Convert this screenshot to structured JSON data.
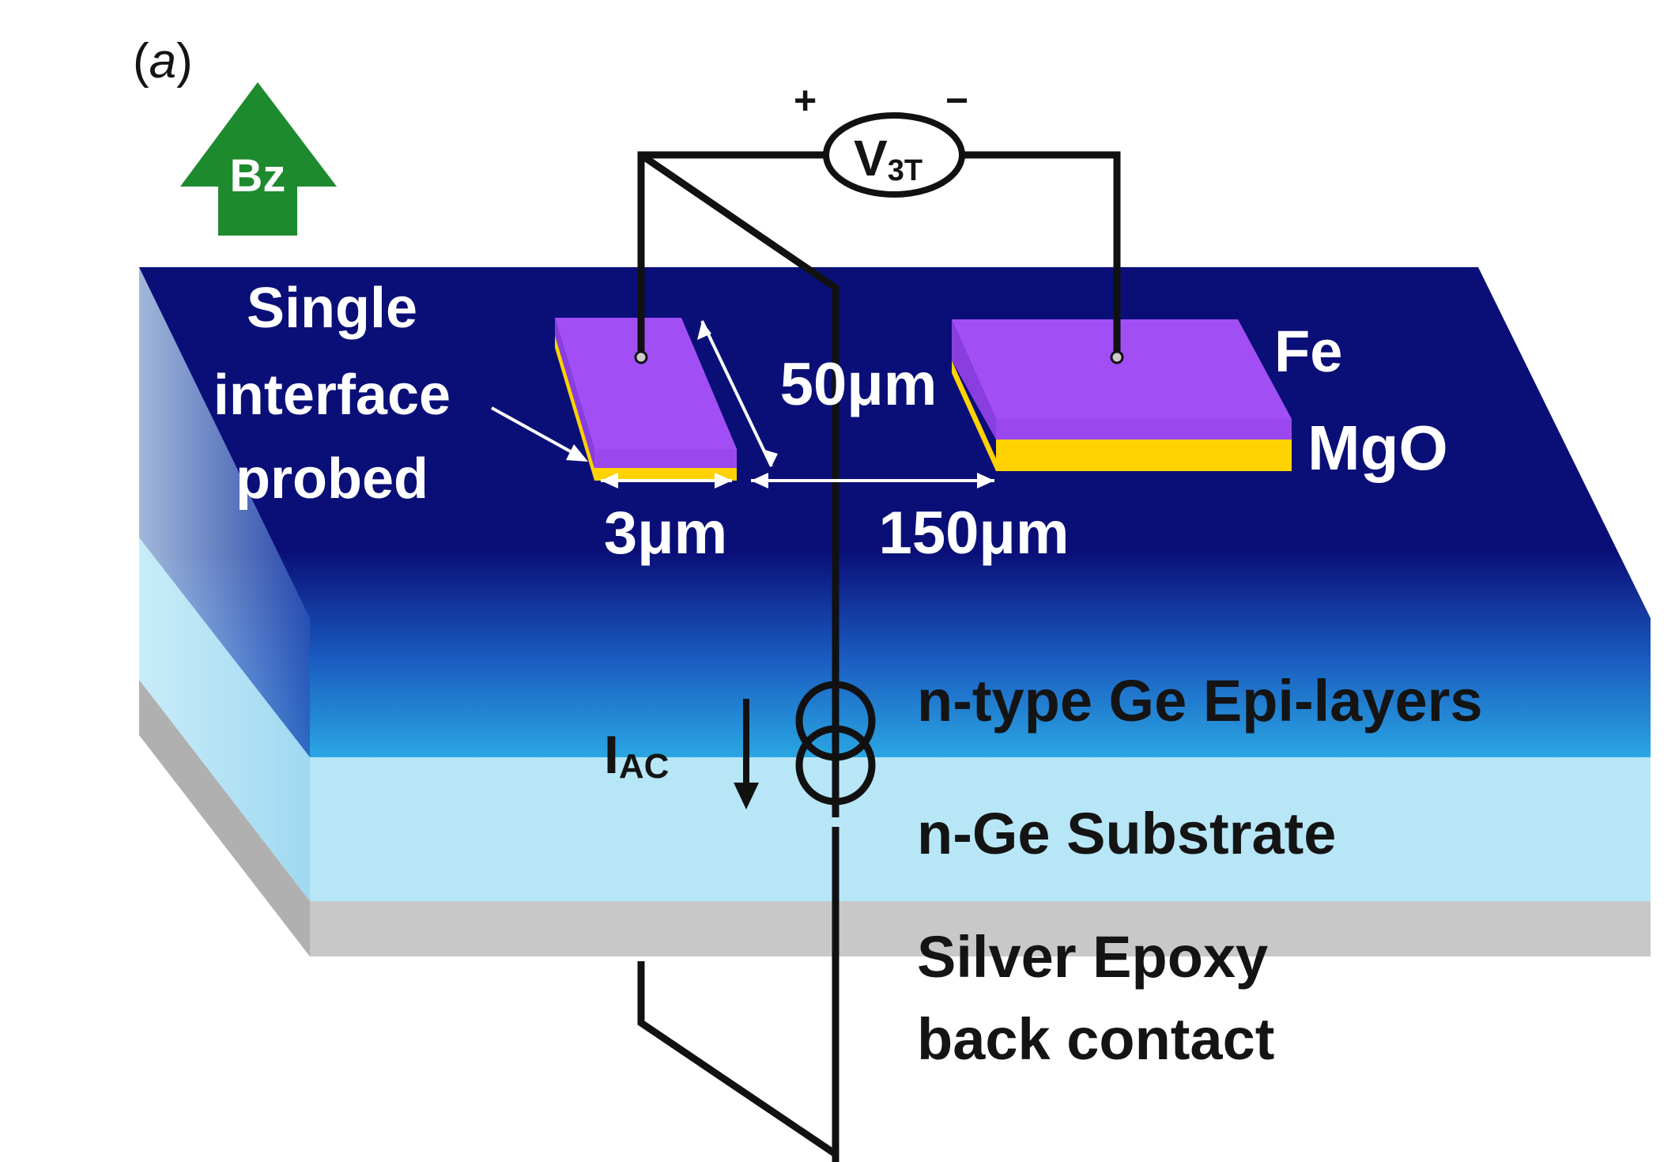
{
  "figure": {
    "panel_label": "a",
    "field": {
      "label": "Bz",
      "color": "#1e8a2e"
    },
    "voltmeter": {
      "label": "V",
      "subscript": "3T",
      "plus": "+",
      "minus": "−"
    },
    "current": {
      "label": "I",
      "subscript": "AC"
    },
    "annotations": {
      "probe_line1": "Single",
      "probe_line2": "interface",
      "probe_line3": "probed",
      "width_small": "3μm",
      "length": "50μm",
      "separation": "150μm",
      "top_layer": "Fe",
      "barrier_layer": "MgO"
    },
    "layers": {
      "epi": "n-type Ge Epi-layers",
      "substrate": "n-Ge Substrate",
      "contact_line1": "Silver Epoxy",
      "contact_line2": "back contact"
    },
    "colors": {
      "epi_dark": "#0a0f78",
      "epi_light": "#2aa6e2",
      "substrate": "#b7e6f7",
      "epoxy": "#c8c8c8",
      "fe": "#a24ef5",
      "mgo": "#ffd200"
    }
  }
}
